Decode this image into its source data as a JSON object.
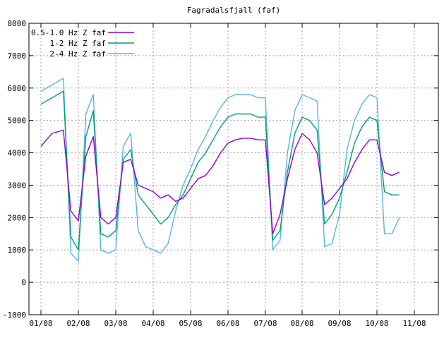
{
  "chart_data": {
    "type": "line",
    "title": "Fagradalsfjall (faf)",
    "xlabel": "",
    "ylabel": "",
    "x_ticks": [
      "01/08",
      "02/08",
      "03/08",
      "04/08",
      "05/08",
      "06/08",
      "07/08",
      "08/08",
      "09/08",
      "10/08",
      "11/08"
    ],
    "ylim": [
      -1000,
      8000
    ],
    "y_ticks": [
      -1000,
      0,
      1000,
      2000,
      3000,
      4000,
      5000,
      6000,
      7000,
      8000
    ],
    "grid": true,
    "legend_position": "top-left",
    "x": [
      0.0,
      0.3,
      0.6,
      0.8,
      1.0,
      1.2,
      1.4,
      1.6,
      1.8,
      2.0,
      2.2,
      2.4,
      2.6,
      2.8,
      3.0,
      3.2,
      3.4,
      3.6,
      3.8,
      4.0,
      4.2,
      4.4,
      4.6,
      4.8,
      5.0,
      5.2,
      5.4,
      5.6,
      5.8,
      6.0,
      6.2,
      6.4,
      6.6,
      6.8,
      7.0,
      7.2,
      7.4,
      7.6,
      7.8,
      8.0,
      8.2,
      8.4,
      8.6,
      8.8,
      9.0,
      9.2,
      9.4,
      9.6,
      9.8,
      10.0
    ],
    "series": [
      {
        "name": "0.5-1.0 Hz Z faf",
        "color": "#9400d3",
        "values": [
          4200,
          4600,
          4700,
          2200,
          1900,
          3900,
          4500,
          2000,
          1800,
          2000,
          3700,
          3800,
          3000,
          2900,
          2800,
          2600,
          2700,
          2500,
          2600,
          2900,
          3200,
          3300,
          3600,
          4000,
          4300,
          4400,
          4450,
          4450,
          4400,
          4400,
          1500,
          2100,
          3200,
          4100,
          4600,
          4400,
          4000,
          2400,
          2600,
          2900,
          3200,
          3700,
          4100,
          4400,
          4400,
          3400,
          3300,
          3400,
          null,
          null
        ]
      },
      {
        "name": "1-2 Hz Z faf",
        "color": "#009e73",
        "values": [
          5500,
          5700,
          5900,
          1400,
          1000,
          4500,
          5300,
          1500,
          1400,
          1600,
          3800,
          4100,
          2700,
          2400,
          2100,
          1800,
          2000,
          2400,
          2700,
          3200,
          3700,
          4000,
          4400,
          4800,
          5100,
          5200,
          5200,
          5200,
          5100,
          5100,
          1300,
          1600,
          3400,
          4600,
          5100,
          5000,
          4700,
          1800,
          2100,
          2600,
          3400,
          4300,
          4800,
          5100,
          5000,
          2800,
          2700,
          2700,
          null,
          null
        ]
      },
      {
        "name": "2-4 Hz Z faf",
        "color": "#56b4e9",
        "values": [
          5900,
          6100,
          6300,
          900,
          650,
          5200,
          5800,
          1000,
          900,
          1000,
          4200,
          4600,
          1600,
          1100,
          1000,
          900,
          1200,
          2200,
          3000,
          3500,
          4100,
          4500,
          5000,
          5400,
          5700,
          5800,
          5800,
          5800,
          5700,
          5700,
          1000,
          1300,
          4000,
          5300,
          5800,
          5700,
          5600,
          1100,
          1200,
          2100,
          4100,
          5000,
          5500,
          5800,
          5700,
          1500,
          1500,
          2000,
          null,
          null
        ]
      }
    ]
  }
}
